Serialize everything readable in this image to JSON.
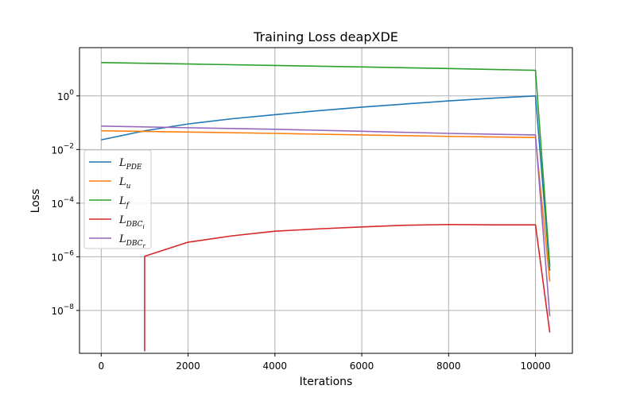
{
  "chart_data": {
    "type": "line",
    "title": "Training Loss deapXDE",
    "xlabel": "Iterations",
    "ylabel": "Loss",
    "xlim": [
      -500,
      10850
    ],
    "ylim_log10": [
      -9.6,
      1.8
    ],
    "yscale": "log",
    "grid": true,
    "legend_position": "center-left",
    "x_ticks": [
      0,
      2000,
      4000,
      6000,
      8000,
      10000
    ],
    "y_ticks": [
      {
        "exp": 0,
        "base": "10",
        "label": "0"
      },
      {
        "exp": -2,
        "base": "10",
        "label": "−2"
      },
      {
        "exp": -4,
        "base": "10",
        "label": "−4"
      },
      {
        "exp": -6,
        "base": "10",
        "label": "−6"
      },
      {
        "exp": -8,
        "base": "10",
        "label": "−8"
      }
    ],
    "series": [
      {
        "name": "L",
        "subscript": "PDE",
        "subsub": "",
        "color": "#1f77b4",
        "x": [
          0,
          1000,
          2000,
          3000,
          4000,
          5000,
          6000,
          7000,
          8000,
          9000,
          10000,
          10330
        ],
        "y": [
          0.023,
          0.05,
          0.09,
          0.14,
          0.2,
          0.28,
          0.38,
          0.5,
          0.65,
          0.82,
          1.0,
          3e-07
        ]
      },
      {
        "name": "L",
        "subscript": "u",
        "subsub": "",
        "color": "#ff7f0e",
        "x": [
          0,
          2000,
          4000,
          6000,
          8000,
          10000,
          10330
        ],
        "y": [
          0.05,
          0.045,
          0.04,
          0.035,
          0.031,
          0.028,
          1.2e-07
        ]
      },
      {
        "name": "L",
        "subscript": "f",
        "subsub": "",
        "color": "#2ca02c",
        "x": [
          0,
          2000,
          4000,
          6000,
          8000,
          10000,
          10330
        ],
        "y": [
          17.5,
          15.5,
          13.7,
          12.0,
          10.5,
          9.0,
          4.5e-07
        ]
      },
      {
        "name": "L",
        "subscript": "DBC",
        "subsub": "i",
        "color": "#d62728",
        "x": [
          1000,
          1000,
          2000,
          3000,
          4000,
          5000,
          6000,
          7000,
          8000,
          9000,
          10000,
          10330
        ],
        "y": [
          3e-10,
          1.05e-06,
          3.5e-06,
          6e-06,
          9e-06,
          1.1e-05,
          1.3e-05,
          1.5e-05,
          1.6e-05,
          1.55e-05,
          1.55e-05,
          1.5e-09
        ]
      },
      {
        "name": "L",
        "subscript": "DBC",
        "subsub": "r",
        "color": "#9467bd",
        "x": [
          0,
          2000,
          4000,
          6000,
          8000,
          10000,
          10330
        ],
        "y": [
          0.075,
          0.065,
          0.057,
          0.048,
          0.04,
          0.035,
          6e-09
        ]
      }
    ]
  }
}
